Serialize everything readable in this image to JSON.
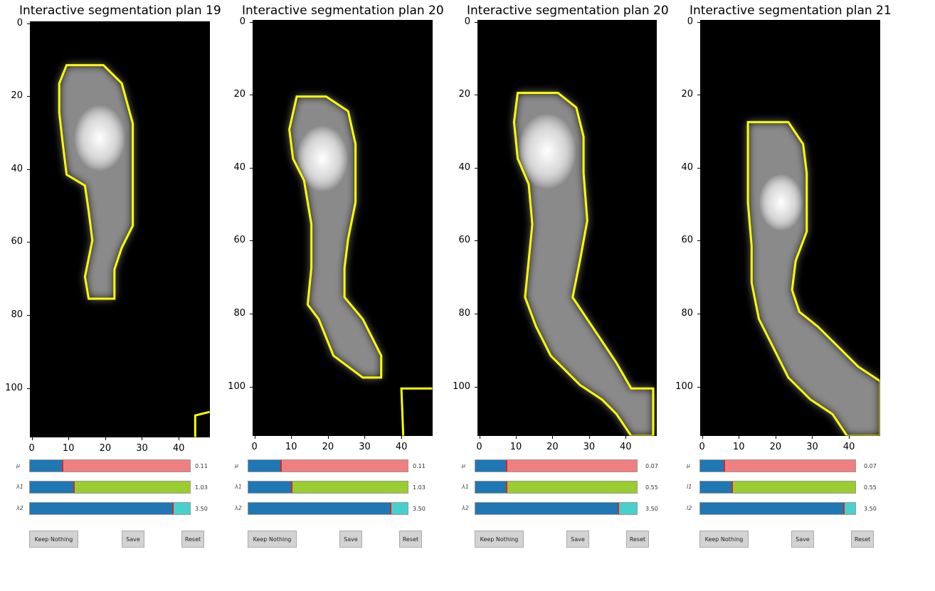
{
  "panels": [
    {
      "title": "Interactive segmentation  plan 19",
      "yticks": [
        "0",
        "20",
        "40",
        "60",
        "80",
        "100"
      ],
      "xticks": [
        "0",
        "10",
        "20",
        "30",
        "40"
      ],
      "sliders": [
        {
          "label": "μ",
          "value": "0.11",
          "fraction": 0.2,
          "color": "#f08080"
        },
        {
          "label": "λ1",
          "value": "1.03",
          "fraction": 0.27,
          "color": "#9acd32"
        },
        {
          "label": "λ2",
          "value": "3.50",
          "fraction": 0.89,
          "color": "#48d1cc"
        }
      ],
      "buttons": {
        "keep": "Keep Nothing",
        "save": "Save",
        "reset": "Reset"
      }
    },
    {
      "title": "Interactive segmentation  plan 20",
      "yticks": [
        "0",
        "20",
        "40",
        "60",
        "80",
        "100"
      ],
      "xticks": [
        "0",
        "10",
        "20",
        "30",
        "40"
      ],
      "sliders": [
        {
          "label": "μ",
          "value": "0.11",
          "fraction": 0.2,
          "color": "#f08080"
        },
        {
          "label": "λ1",
          "value": "1.03",
          "fraction": 0.27,
          "color": "#9acd32"
        },
        {
          "label": "λ2",
          "value": "3.50",
          "fraction": 0.89,
          "color": "#48d1cc"
        }
      ],
      "buttons": {
        "keep": "Keep Nothing",
        "save": "Save",
        "reset": "Reset"
      }
    },
    {
      "title": "Interactive segmentation  plan 20",
      "yticks": [
        "0",
        "20",
        "40",
        "60",
        "80",
        "100"
      ],
      "xticks": [
        "0",
        "10",
        "20",
        "30",
        "40"
      ],
      "sliders": [
        {
          "label": "μ",
          "value": "0.07",
          "fraction": 0.19,
          "color": "#f08080"
        },
        {
          "label": "λ1",
          "value": "0.55",
          "fraction": 0.19,
          "color": "#9acd32"
        },
        {
          "label": "λ2",
          "value": "3.50",
          "fraction": 0.88,
          "color": "#48d1cc"
        }
      ],
      "buttons": {
        "keep": "Keep Nothing",
        "save": "Save",
        "reset": "Reset"
      }
    },
    {
      "title": "Interactive segmentation  plan 21",
      "yticks": [
        "0",
        "20",
        "40",
        "60",
        "80",
        "100"
      ],
      "xticks": [
        "0",
        "10",
        "20",
        "30",
        "40"
      ],
      "sliders": [
        {
          "label": "μ",
          "value": "0.07",
          "fraction": 0.15,
          "color": "#f08080"
        },
        {
          "label": "l1",
          "value": "0.55",
          "fraction": 0.2,
          "color": "#9acd32"
        },
        {
          "label": "l2",
          "value": "3.50",
          "fraction": 0.92,
          "color": "#48d1cc"
        }
      ],
      "buttons": {
        "keep": "Keep Nothing",
        "save": "Save",
        "reset": "Reset"
      }
    }
  ]
}
